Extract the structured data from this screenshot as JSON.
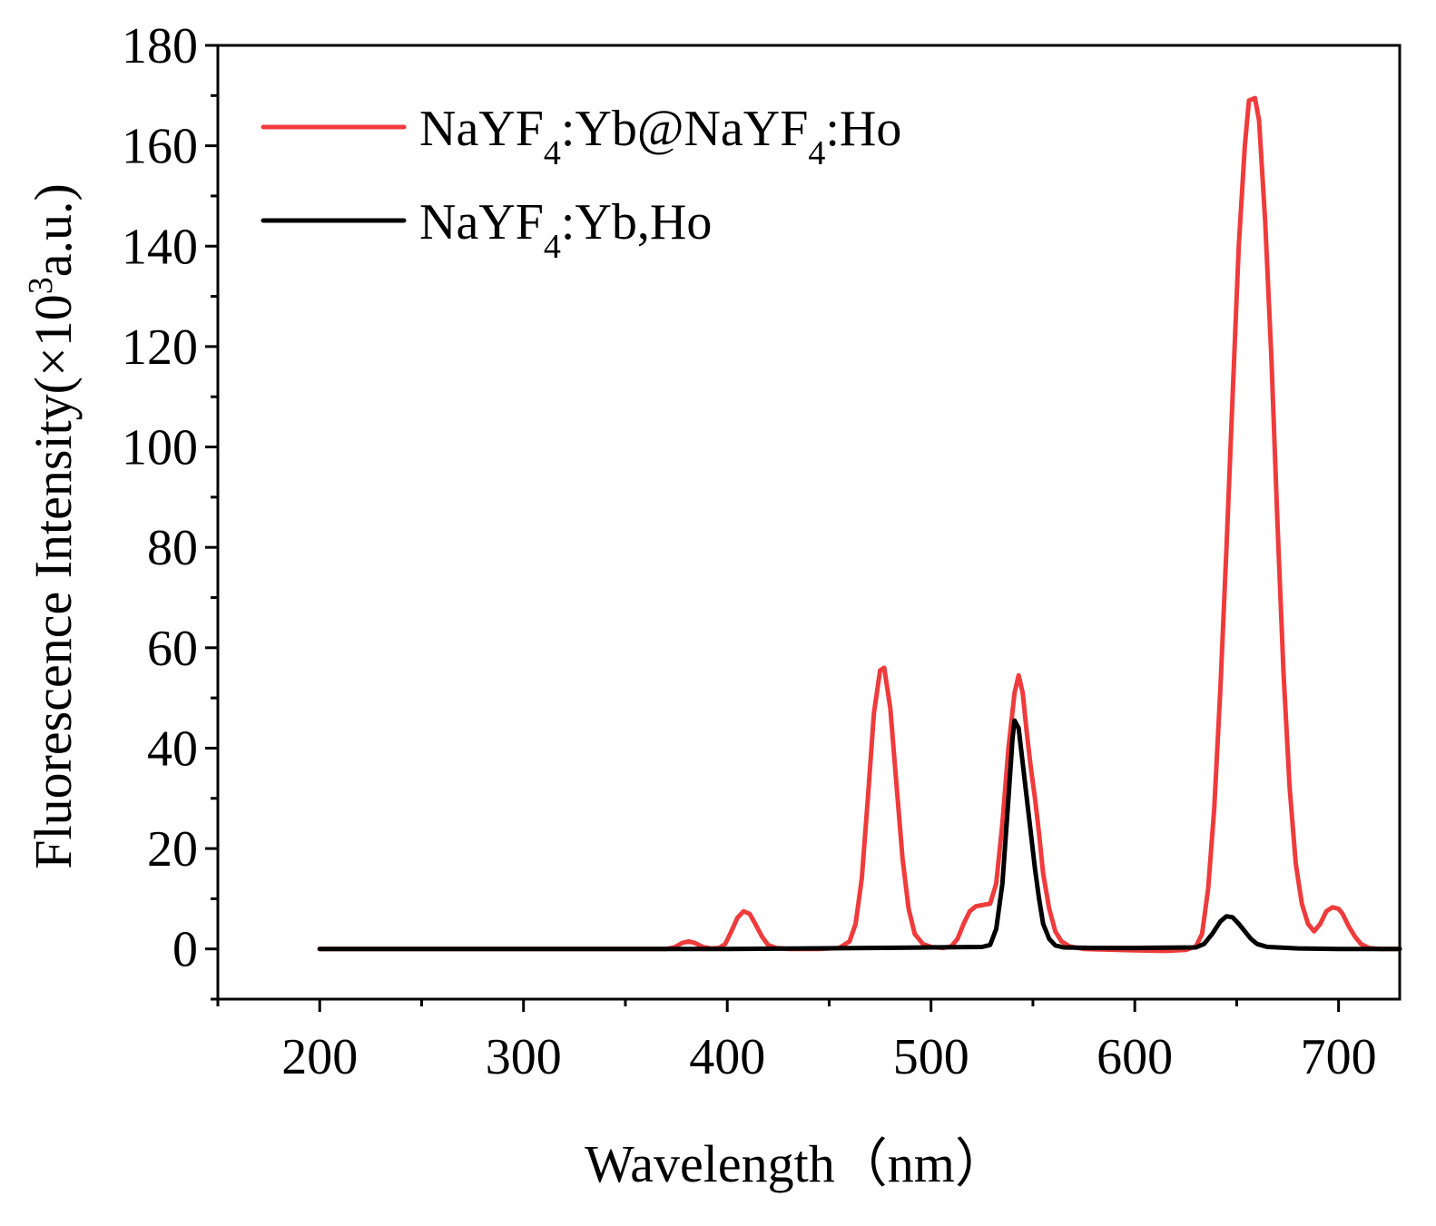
{
  "chart_data": {
    "type": "line",
    "title": "",
    "xlabel": "Wavelength（nm）",
    "ylabel_parts": {
      "prefix": "Fluorescence Intensity(×10",
      "sup": "3",
      "suffix": "a.u.)"
    },
    "xlim": [
      150,
      730
    ],
    "ylim": [
      -10,
      180
    ],
    "xticks": [
      200,
      300,
      400,
      500,
      600,
      700
    ],
    "xticks_minor": [
      150,
      250,
      350,
      450,
      550,
      650
    ],
    "yticks": [
      0,
      20,
      40,
      60,
      80,
      100,
      120,
      140,
      160,
      180
    ],
    "yticks_minor": [
      -10,
      10,
      30,
      50,
      70,
      90,
      110,
      130,
      150,
      170
    ],
    "legend_position": "top-left",
    "series": [
      {
        "name": "NaYF4:Yb@NaYF4:Ho",
        "legend_parts": [
          {
            "t": "NaYF",
            "sub": false
          },
          {
            "t": "4",
            "sub": true
          },
          {
            "t": ":Yb@NaYF",
            "sub": false
          },
          {
            "t": "4",
            "sub": true
          },
          {
            "t": ":Ho",
            "sub": false
          }
        ],
        "color": "#ef3b3b",
        "points": [
          [
            200,
            0
          ],
          [
            370,
            0
          ],
          [
            374,
            0.3
          ],
          [
            378,
            1.2
          ],
          [
            381,
            1.5
          ],
          [
            384,
            1.2
          ],
          [
            388,
            0.4
          ],
          [
            392,
            0.1
          ],
          [
            396,
            0.2
          ],
          [
            399,
            1
          ],
          [
            402,
            3.5
          ],
          [
            405,
            6.2
          ],
          [
            408,
            7.5
          ],
          [
            411,
            7
          ],
          [
            414,
            4.8
          ],
          [
            417,
            2.5
          ],
          [
            420,
            0.8
          ],
          [
            424,
            0.2
          ],
          [
            430,
            0
          ],
          [
            445,
            0
          ],
          [
            455,
            0.2
          ],
          [
            460,
            1.5
          ],
          [
            463,
            5
          ],
          [
            466,
            14
          ],
          [
            469,
            30
          ],
          [
            472,
            47
          ],
          [
            475,
            55.5
          ],
          [
            477,
            56
          ],
          [
            480,
            48
          ],
          [
            483,
            33
          ],
          [
            486,
            18
          ],
          [
            489,
            8
          ],
          [
            492,
            3
          ],
          [
            496,
            1
          ],
          [
            500,
            0.4
          ],
          [
            506,
            0.2
          ],
          [
            510,
            0.5
          ],
          [
            513,
            2
          ],
          [
            516,
            5
          ],
          [
            519,
            7.5
          ],
          [
            522,
            8.5
          ],
          [
            526,
            8.8
          ],
          [
            529,
            9
          ],
          [
            532,
            13
          ],
          [
            535,
            25
          ],
          [
            538,
            40
          ],
          [
            541,
            51
          ],
          [
            543,
            54.5
          ],
          [
            545,
            51
          ],
          [
            547,
            43
          ],
          [
            549,
            36
          ],
          [
            551,
            30
          ],
          [
            553,
            23
          ],
          [
            555,
            15
          ],
          [
            558,
            8
          ],
          [
            561,
            3.5
          ],
          [
            564,
            1.5
          ],
          [
            568,
            0.5
          ],
          [
            575,
            0
          ],
          [
            600,
            -0.3
          ],
          [
            615,
            -0.4
          ],
          [
            625,
            -0.2
          ],
          [
            630,
            0.5
          ],
          [
            633,
            3
          ],
          [
            636,
            12
          ],
          [
            639,
            28
          ],
          [
            642,
            52
          ],
          [
            645,
            80
          ],
          [
            648,
            110
          ],
          [
            651,
            140
          ],
          [
            654,
            160
          ],
          [
            656,
            169
          ],
          [
            659,
            169.5
          ],
          [
            661,
            165
          ],
          [
            664,
            145
          ],
          [
            667,
            118
          ],
          [
            670,
            85
          ],
          [
            673,
            55
          ],
          [
            676,
            32
          ],
          [
            679,
            17
          ],
          [
            682,
            9
          ],
          [
            685,
            5
          ],
          [
            688,
            3.5
          ],
          [
            691,
            5
          ],
          [
            694,
            7.5
          ],
          [
            697,
            8.3
          ],
          [
            700,
            8
          ],
          [
            702,
            7
          ],
          [
            705,
            4.5
          ],
          [
            708,
            2.5
          ],
          [
            711,
            1
          ],
          [
            715,
            0.2
          ],
          [
            720,
            0
          ],
          [
            730,
            0
          ]
        ]
      },
      {
        "name": "NaYF4:Yb,Ho",
        "legend_parts": [
          {
            "t": "NaYF",
            "sub": false
          },
          {
            "t": "4",
            "sub": true
          },
          {
            "t": ":Yb,Ho",
            "sub": false
          }
        ],
        "color": "#000000",
        "points": [
          [
            200,
            0
          ],
          [
            370,
            0
          ],
          [
            400,
            0
          ],
          [
            470,
            0.2
          ],
          [
            500,
            0.3
          ],
          [
            525,
            0.4
          ],
          [
            529,
            0.8
          ],
          [
            532,
            4
          ],
          [
            535,
            13
          ],
          [
            538,
            30
          ],
          [
            540,
            42
          ],
          [
            541,
            45.5
          ],
          [
            543,
            44
          ],
          [
            545,
            37
          ],
          [
            547,
            30
          ],
          [
            549,
            23
          ],
          [
            551,
            16
          ],
          [
            553,
            10
          ],
          [
            555,
            5
          ],
          [
            558,
            2
          ],
          [
            561,
            0.7
          ],
          [
            565,
            0.3
          ],
          [
            580,
            0.2
          ],
          [
            600,
            0.2
          ],
          [
            630,
            0.3
          ],
          [
            634,
            1
          ],
          [
            638,
            3
          ],
          [
            642,
            5.5
          ],
          [
            645,
            6.5
          ],
          [
            648,
            6.3
          ],
          [
            651,
            5
          ],
          [
            654,
            3.5
          ],
          [
            657,
            2
          ],
          [
            660,
            1
          ],
          [
            665,
            0.4
          ],
          [
            680,
            0.1
          ],
          [
            700,
            0
          ],
          [
            730,
            0
          ]
        ]
      }
    ]
  }
}
